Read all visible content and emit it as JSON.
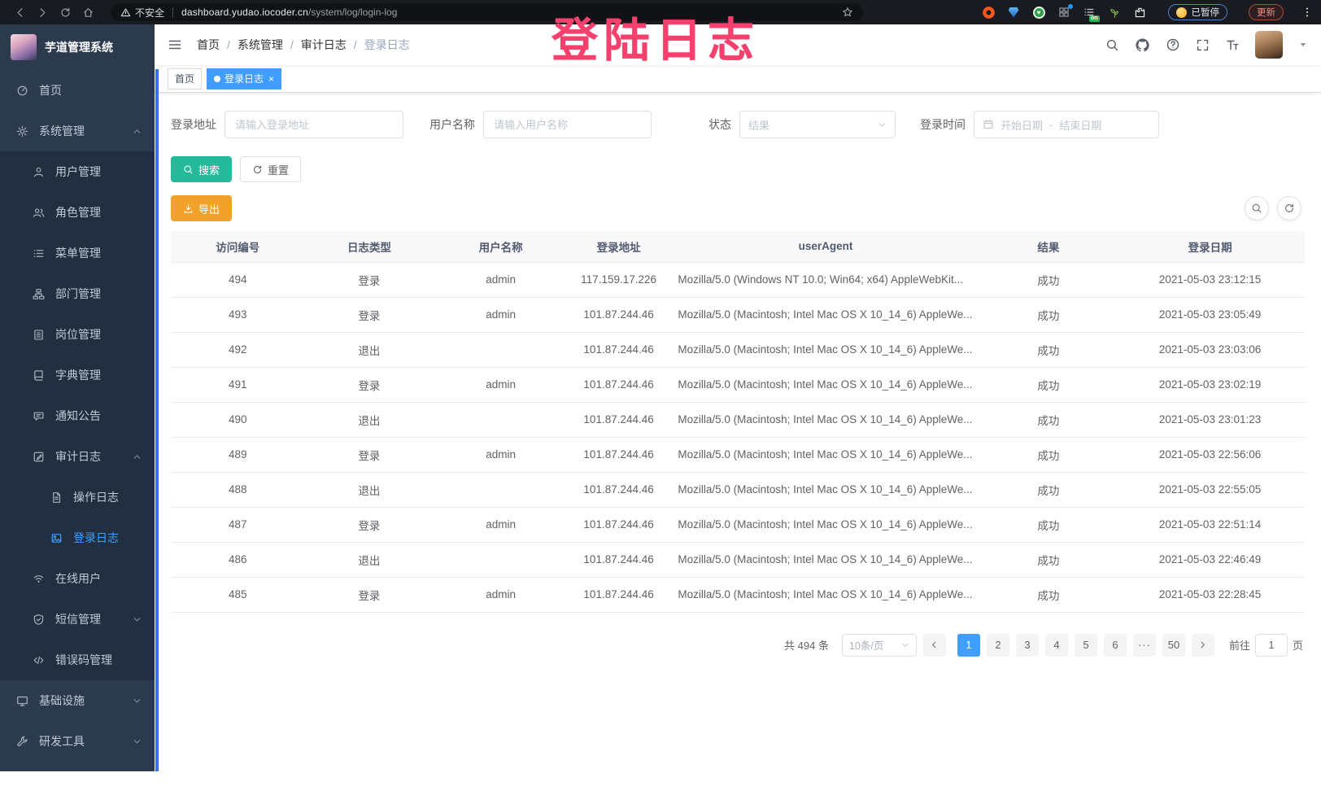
{
  "browser": {
    "security_text": "不安全",
    "url_host": "dashboard.yudao.iocoder.cn",
    "url_path": "/system/log/login-log",
    "extension_badge": "on",
    "paused_label": "已暂停",
    "update_label": "更新"
  },
  "annotation": {
    "text": "登陆日志",
    "color": "#f4406c"
  },
  "sidebar": {
    "title": "芋道管理系统",
    "menu": [
      {
        "label": "首页",
        "icon": "dashboard-icon",
        "level": 1,
        "sub": false
      },
      {
        "label": "系统管理",
        "icon": "gear-icon",
        "level": 1,
        "sub": false,
        "arrow": "up"
      },
      {
        "label": "用户管理",
        "icon": "user-icon",
        "level": 2,
        "sub": true
      },
      {
        "label": "角色管理",
        "icon": "roles-icon",
        "level": 2,
        "sub": true
      },
      {
        "label": "菜单管理",
        "icon": "menu-list-icon",
        "level": 2,
        "sub": true
      },
      {
        "label": "部门管理",
        "icon": "org-tree-icon",
        "level": 2,
        "sub": true
      },
      {
        "label": "岗位管理",
        "icon": "post-badge-icon",
        "level": 2,
        "sub": true
      },
      {
        "label": "字典管理",
        "icon": "dictionary-icon",
        "level": 2,
        "sub": true
      },
      {
        "label": "通知公告",
        "icon": "announcement-icon",
        "level": 2,
        "sub": true
      },
      {
        "label": "审计日志",
        "icon": "audit-log-icon",
        "level": 2,
        "sub": true,
        "arrow": "up"
      },
      {
        "label": "操作日志",
        "icon": "operation-log-icon",
        "level": 3,
        "sub": true
      },
      {
        "label": "登录日志",
        "icon": "login-log-icon",
        "level": 3,
        "sub": true,
        "active": true
      },
      {
        "label": "在线用户",
        "icon": "online-user-icon",
        "level": 2,
        "sub": true
      },
      {
        "label": "短信管理",
        "icon": "sms-shield-icon",
        "level": 2,
        "sub": true,
        "arrow": "down"
      },
      {
        "label": "错误码管理",
        "icon": "error-code-icon",
        "level": 2,
        "sub": true
      },
      {
        "label": "基础设施",
        "icon": "infrastructure-icon",
        "level": 1,
        "sub": false,
        "arrow": "down"
      },
      {
        "label": "研发工具",
        "icon": "dev-tools-icon",
        "level": 1,
        "sub": false,
        "arrow": "down"
      }
    ]
  },
  "header": {
    "breadcrumb": [
      "首页",
      "系统管理",
      "审计日志",
      "登录日志"
    ]
  },
  "tags": [
    {
      "label": "首页",
      "active": false,
      "closable": false
    },
    {
      "label": "登录日志",
      "active": true,
      "closable": true
    }
  ],
  "filters": {
    "address_label": "登录地址",
    "address_placeholder": "请输入登录地址",
    "username_label": "用户名称",
    "username_placeholder": "请输入用户名称",
    "status_label": "状态",
    "status_placeholder": "结果",
    "time_label": "登录时间",
    "date_start_placeholder": "开始日期",
    "date_separator": "-",
    "date_end_placeholder": "结束日期",
    "search_label": "搜索",
    "reset_label": "重置"
  },
  "toolbar": {
    "export_label": "导出"
  },
  "table": {
    "headers": [
      "访问编号",
      "日志类型",
      "用户名称",
      "登录地址",
      "userAgent",
      "结果",
      "登录日期"
    ],
    "rows": [
      {
        "id": "494",
        "type": "登录",
        "username": "admin",
        "ip": "117.159.17.226",
        "user_agent": "Mozilla/5.0 (Windows NT 10.0; Win64; x64) AppleWebKit...",
        "result": "成功",
        "date": "2021-05-03 23:12:15"
      },
      {
        "id": "493",
        "type": "登录",
        "username": "admin",
        "ip": "101.87.244.46",
        "user_agent": "Mozilla/5.0 (Macintosh; Intel Mac OS X 10_14_6) AppleWe...",
        "result": "成功",
        "date": "2021-05-03 23:05:49"
      },
      {
        "id": "492",
        "type": "退出",
        "username": "",
        "ip": "101.87.244.46",
        "user_agent": "Mozilla/5.0 (Macintosh; Intel Mac OS X 10_14_6) AppleWe...",
        "result": "成功",
        "date": "2021-05-03 23:03:06"
      },
      {
        "id": "491",
        "type": "登录",
        "username": "admin",
        "ip": "101.87.244.46",
        "user_agent": "Mozilla/5.0 (Macintosh; Intel Mac OS X 10_14_6) AppleWe...",
        "result": "成功",
        "date": "2021-05-03 23:02:19"
      },
      {
        "id": "490",
        "type": "退出",
        "username": "",
        "ip": "101.87.244.46",
        "user_agent": "Mozilla/5.0 (Macintosh; Intel Mac OS X 10_14_6) AppleWe...",
        "result": "成功",
        "date": "2021-05-03 23:01:23"
      },
      {
        "id": "489",
        "type": "登录",
        "username": "admin",
        "ip": "101.87.244.46",
        "user_agent": "Mozilla/5.0 (Macintosh; Intel Mac OS X 10_14_6) AppleWe...",
        "result": "成功",
        "date": "2021-05-03 22:56:06"
      },
      {
        "id": "488",
        "type": "退出",
        "username": "",
        "ip": "101.87.244.46",
        "user_agent": "Mozilla/5.0 (Macintosh; Intel Mac OS X 10_14_6) AppleWe...",
        "result": "成功",
        "date": "2021-05-03 22:55:05"
      },
      {
        "id": "487",
        "type": "登录",
        "username": "admin",
        "ip": "101.87.244.46",
        "user_agent": "Mozilla/5.0 (Macintosh; Intel Mac OS X 10_14_6) AppleWe...",
        "result": "成功",
        "date": "2021-05-03 22:51:14"
      },
      {
        "id": "486",
        "type": "退出",
        "username": "",
        "ip": "101.87.244.46",
        "user_agent": "Mozilla/5.0 (Macintosh; Intel Mac OS X 10_14_6) AppleWe...",
        "result": "成功",
        "date": "2021-05-03 22:46:49"
      },
      {
        "id": "485",
        "type": "登录",
        "username": "admin",
        "ip": "101.87.244.46",
        "user_agent": "Mozilla/5.0 (Macintosh; Intel Mac OS X 10_14_6) AppleWe...",
        "result": "成功",
        "date": "2021-05-03 22:28:45"
      }
    ]
  },
  "pagination": {
    "total_text": "共 494 条",
    "page_size_text": "10条/页",
    "pages": [
      "1",
      "2",
      "3",
      "4",
      "5",
      "6",
      "···",
      "50"
    ],
    "active_page": "1",
    "goto_label": "前往",
    "goto_value": "1",
    "page_unit": "页"
  }
}
